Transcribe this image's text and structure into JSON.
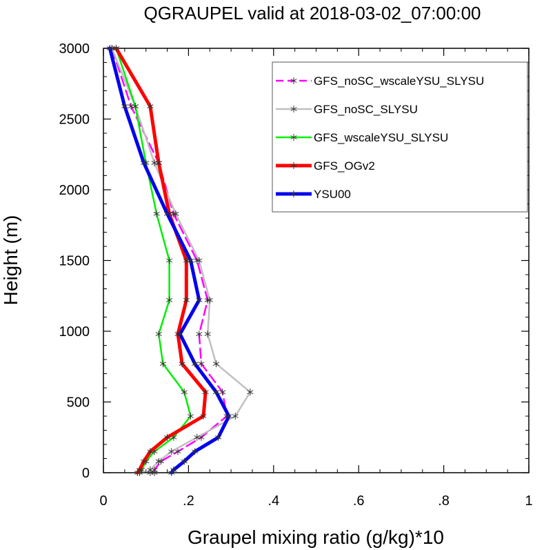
{
  "chart_data": {
    "type": "line",
    "title": "QGRAUPEL valid at 2018-03-02_07:00:00",
    "xlabel": "Graupel mixing ratio (g/kg)*10",
    "ylabel": "Height (m)",
    "xlim": [
      0,
      1
    ],
    "ylim": [
      0,
      3000
    ],
    "xticks": [
      0,
      0.2,
      0.4,
      0.6,
      0.8,
      1.0
    ],
    "xtick_labels": [
      "0",
      ".2",
      ".4",
      ".6",
      ".8",
      "1"
    ],
    "yticks": [
      0,
      500,
      1000,
      1500,
      2000,
      2500,
      3000
    ],
    "ytick_labels": [
      "0",
      "500",
      "1000",
      "1500",
      "2000",
      "2500",
      "3000"
    ],
    "grid": false,
    "legend_position": "top-right",
    "series": [
      {
        "name": "GFS_noSC_wscaleYSU_SLYSU",
        "color": "#ff00ff",
        "dash": "dashed",
        "heights": [
          0,
          20,
          80,
          150,
          250,
          400,
          570,
          770,
          980,
          1220,
          1500,
          1830,
          2190,
          2590,
          3000
        ],
        "values": [
          0.12,
          0.12,
          0.135,
          0.175,
          0.23,
          0.29,
          0.28,
          0.23,
          0.225,
          0.245,
          0.22,
          0.165,
          0.13,
          0.065,
          0.02
        ]
      },
      {
        "name": "GFS_noSC_SLYSU",
        "color": "#bfbfbf",
        "dash": "solid",
        "heights": [
          0,
          20,
          80,
          150,
          250,
          400,
          570,
          770,
          980,
          1220,
          1500,
          1830,
          2190,
          2590,
          3000
        ],
        "values": [
          0.11,
          0.11,
          0.13,
          0.16,
          0.22,
          0.31,
          0.345,
          0.265,
          0.245,
          0.25,
          0.225,
          0.17,
          0.12,
          0.075,
          0.02
        ]
      },
      {
        "name": "GFS_wscaleYSU_SLYSU",
        "color": "#00ee00",
        "dash": "solid",
        "heights": [
          0,
          20,
          80,
          150,
          250,
          400,
          570,
          770,
          980,
          1220,
          1500,
          1830,
          2190,
          2590,
          3000
        ],
        "values": [
          0.085,
          0.09,
          0.1,
          0.12,
          0.165,
          0.205,
          0.19,
          0.14,
          0.13,
          0.155,
          0.155,
          0.125,
          0.1,
          0.075,
          0.03
        ]
      },
      {
        "name": "GFS_OGv2",
        "color": "#ff0000",
        "dash": "solid",
        "heights": [
          0,
          20,
          80,
          150,
          250,
          400,
          570,
          770,
          980,
          1220,
          1500,
          1830,
          2190,
          2590,
          3000
        ],
        "values": [
          0.08,
          0.085,
          0.095,
          0.11,
          0.15,
          0.235,
          0.24,
          0.185,
          0.175,
          0.195,
          0.195,
          0.155,
          0.13,
          0.11,
          0.03
        ]
      },
      {
        "name": "YSU00",
        "color": "#0000ee",
        "dash": "solid",
        "heights": [
          0,
          20,
          80,
          150,
          250,
          400,
          570,
          770,
          980,
          1220,
          1500,
          1830,
          2190,
          2590,
          3000
        ],
        "values": [
          0.16,
          0.165,
          0.19,
          0.215,
          0.27,
          0.295,
          0.265,
          0.215,
          0.18,
          0.225,
          0.205,
          0.15,
          0.095,
          0.05,
          0.015
        ]
      }
    ]
  }
}
